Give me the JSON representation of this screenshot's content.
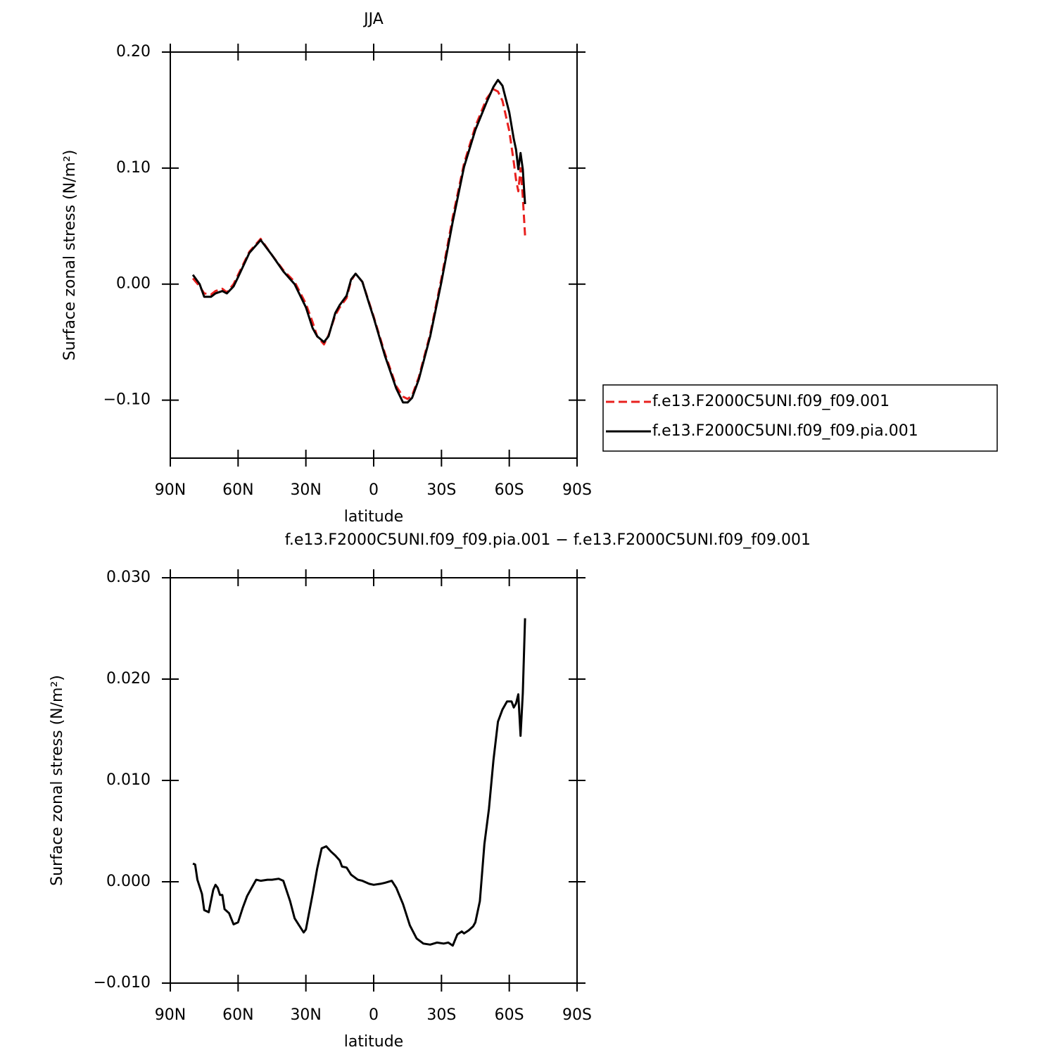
{
  "chart_data": [
    {
      "type": "line",
      "title": "JJA",
      "xlabel": "latitude",
      "ylabel": "Surface zonal stress (N/m²)",
      "xlim": [
        90,
        -90
      ],
      "xticks": [
        {
          "value": 90,
          "label": "90N"
        },
        {
          "value": 60,
          "label": "60N"
        },
        {
          "value": 30,
          "label": "30N"
        },
        0,
        {
          "value": -30,
          "label": "30S"
        },
        {
          "value": -60,
          "label": "60S"
        },
        {
          "value": -90,
          "label": "90S"
        }
      ],
      "ylim": [
        -0.15,
        0.2
      ],
      "yticks": [
        {
          "value": -0.1,
          "label": "−0.10"
        },
        {
          "value": 0,
          "label": "0.00"
        },
        {
          "value": 0.1,
          "label": "0.10"
        },
        {
          "value": 0.2,
          "label": "0.20"
        }
      ],
      "legend": "outside-right",
      "x": [
        80,
        77,
        75,
        72,
        70,
        67,
        65,
        62,
        60,
        55,
        50,
        45,
        40,
        35,
        30,
        27,
        25,
        22,
        20,
        17,
        15,
        12,
        10,
        8,
        5,
        2,
        0,
        -5,
        -10,
        -13,
        -15,
        -17,
        -20,
        -25,
        -30,
        -35,
        -40,
        -45,
        -50,
        -53,
        -55,
        -57,
        -60,
        -62,
        -63,
        -64,
        -65,
        -66,
        -67
      ],
      "series": [
        {
          "name": "f.e13.F2000C5UNI.f09_f09.001",
          "color": "#e8201e",
          "dash": true,
          "values": [
            0.005,
            -0.002,
            -0.008,
            -0.009,
            -0.006,
            -0.004,
            -0.007,
            0.0,
            0.008,
            0.028,
            0.039,
            0.025,
            0.012,
            0.002,
            -0.017,
            -0.033,
            -0.045,
            -0.052,
            -0.044,
            -0.027,
            -0.02,
            -0.012,
            0.003,
            0.009,
            0.002,
            -0.016,
            -0.028,
            -0.06,
            -0.088,
            -0.097,
            -0.099,
            -0.096,
            -0.08,
            -0.043,
            0.005,
            0.058,
            0.104,
            0.136,
            0.16,
            0.168,
            0.166,
            0.158,
            0.132,
            0.105,
            0.09,
            0.08,
            0.1,
            0.075,
            0.042
          ]
        },
        {
          "name": "f.e13.F2000C5UNI.f09_f09.pia.001",
          "color": "#000000",
          "dash": false,
          "values": [
            0.008,
            0.0,
            -0.011,
            -0.011,
            -0.008,
            -0.006,
            -0.008,
            -0.002,
            0.006,
            0.027,
            0.038,
            0.025,
            0.011,
            0.0,
            -0.02,
            -0.038,
            -0.045,
            -0.05,
            -0.045,
            -0.025,
            -0.018,
            -0.01,
            0.004,
            0.009,
            0.002,
            -0.017,
            -0.029,
            -0.062,
            -0.09,
            -0.102,
            -0.102,
            -0.098,
            -0.082,
            -0.045,
            0.002,
            0.054,
            0.101,
            0.133,
            0.157,
            0.17,
            0.176,
            0.171,
            0.148,
            0.125,
            0.116,
            0.099,
            0.113,
            0.099,
            0.069
          ]
        }
      ]
    },
    {
      "type": "line",
      "title": "f.e13.F2000C5UNI.f09_f09.pia.001 − f.e13.F2000C5UNI.f09_f09.001",
      "xlabel": "latitude",
      "ylabel": "Surface zonal stress (N/m²)",
      "xlim": [
        90,
        -90
      ],
      "xticks": [
        {
          "value": 90,
          "label": "90N"
        },
        {
          "value": 60,
          "label": "60N"
        },
        {
          "value": 30,
          "label": "30N"
        },
        0,
        {
          "value": -30,
          "label": "30S"
        },
        {
          "value": -60,
          "label": "60S"
        },
        {
          "value": -90,
          "label": "90S"
        }
      ],
      "ylim": [
        -0.01,
        0.03
      ],
      "yticks": [
        {
          "value": -0.01,
          "label": "−0.010"
        },
        {
          "value": 0,
          "label": "0.000"
        },
        {
          "value": 0.01,
          "label": "0.010"
        },
        {
          "value": 0.02,
          "label": "0.020"
        },
        {
          "value": 0.03,
          "label": "0.030"
        }
      ],
      "x": [
        80,
        79,
        78,
        76,
        75,
        73,
        71,
        70,
        69,
        68,
        67,
        66,
        64,
        62,
        60,
        58,
        56,
        52,
        50,
        47,
        45,
        42,
        40,
        37,
        35,
        33,
        31,
        30,
        27,
        25,
        23,
        21,
        19,
        17,
        15,
        14,
        12,
        10,
        7,
        5,
        2,
        0,
        -3,
        -5,
        -8,
        -10,
        -13,
        -16,
        -19,
        -22,
        -25,
        -28,
        -31,
        -33,
        -35,
        -37,
        -39,
        -40,
        -42,
        -44,
        -45,
        -47,
        -49,
        -51,
        -53,
        -55,
        -57,
        -59,
        -61,
        -62,
        -63,
        -64,
        -65,
        -66,
        -67
      ],
      "series": [
        {
          "color": "#000000",
          "dash": false,
          "values": [
            0.0018,
            0.0017,
            0.0002,
            -0.0012,
            -0.0028,
            -0.003,
            -0.0008,
            -0.0003,
            -0.0006,
            -0.0013,
            -0.0013,
            -0.0027,
            -0.0031,
            -0.0042,
            -0.004,
            -0.0026,
            -0.0014,
            0.0002,
            0.0001,
            0.0002,
            0.0002,
            0.0003,
            0.0001,
            -0.0019,
            -0.0036,
            -0.0043,
            -0.005,
            -0.0047,
            -0.0012,
            0.0013,
            0.0033,
            0.0035,
            0.003,
            0.0026,
            0.0021,
            0.0015,
            0.0014,
            0.0007,
            0.0002,
            0.0001,
            -0.0002,
            -0.0003,
            -0.0002,
            -0.0001,
            0.0001,
            -0.0006,
            -0.0022,
            -0.0043,
            -0.0056,
            -0.0061,
            -0.0062,
            -0.006,
            -0.0061,
            -0.006,
            -0.0063,
            -0.0052,
            -0.0049,
            -0.0051,
            -0.0048,
            -0.0044,
            -0.004,
            -0.0019,
            0.0037,
            0.0072,
            0.012,
            0.0158,
            0.017,
            0.0178,
            0.0178,
            0.0172,
            0.0176,
            0.0185,
            0.0144,
            0.0186,
            0.026
          ]
        }
      ]
    }
  ]
}
